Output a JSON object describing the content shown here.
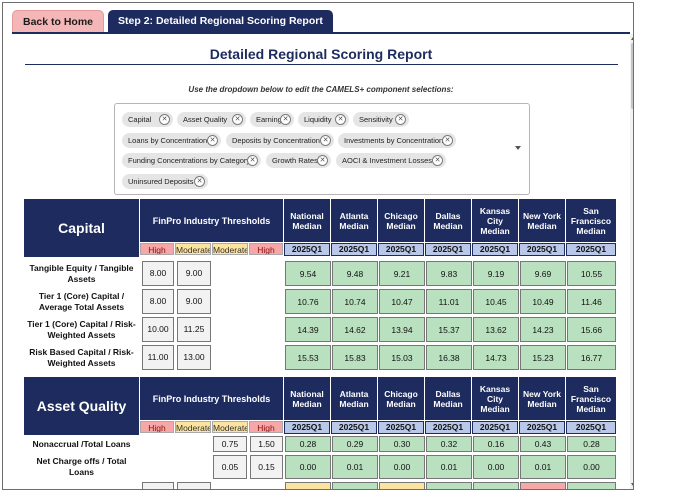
{
  "tabs": {
    "home": "Back to Home",
    "active": "Step 2: Detailed Regional Scoring Report"
  },
  "page": {
    "title": "Detailed Regional Scoring Report",
    "instruction": "Use the dropdown below to edit the CAMELS+ component selections:"
  },
  "selections": [
    "Capital",
    "Asset Quality",
    "Earnings",
    "Liquidity",
    "Sensitivity",
    "Loans by Concentration",
    "Deposits by Concentration",
    "Investments by Concentration",
    "Funding Concentrations by Category",
    "Growth Rates",
    "AOCI & Investment Losses",
    "Uninsured Deposits"
  ],
  "table_common": {
    "thresholds_title": "FinPro Industry Thresholds",
    "pill_high": "High",
    "pill_moderate": "Moderate",
    "quarter": "2025Q1",
    "medians": [
      "National Median",
      "Atlanta Median",
      "Chicago Median",
      "Dallas Median",
      "Kansas City Median",
      "New York Median",
      "San Francisco Median"
    ]
  },
  "capital": {
    "title": "Capital",
    "rows": [
      {
        "label": "Tangible Equity / Tangible Assets",
        "t1": "8.00",
        "t2": "9.00",
        "values": [
          "9.54",
          "9.48",
          "9.21",
          "9.83",
          "9.19",
          "9.69",
          "10.55"
        ]
      },
      {
        "label": "Tier 1 (Core) Capital / Average Total Assets",
        "t1": "8.00",
        "t2": "9.00",
        "values": [
          "10.76",
          "10.74",
          "10.47",
          "11.01",
          "10.45",
          "10.49",
          "11.46"
        ]
      },
      {
        "label": "Tier 1 (Core) Capital / Risk-Weighted Assets",
        "t1": "10.00",
        "t2": "11.25",
        "values": [
          "14.39",
          "14.62",
          "13.94",
          "15.37",
          "13.62",
          "14.23",
          "15.66"
        ]
      },
      {
        "label": "Risk Based Capital / Risk-Weighted Assets",
        "t1": "11.00",
        "t2": "13.00",
        "values": [
          "15.53",
          "15.83",
          "15.03",
          "16.38",
          "14.73",
          "15.23",
          "16.77"
        ]
      }
    ]
  },
  "asset_quality": {
    "title": "Asset Quality",
    "rows": [
      {
        "label": "Nonaccrual /Total Loans",
        "t1": "0.75",
        "t2": "1.50",
        "values": [
          "0.28",
          "0.29",
          "0.30",
          "0.32",
          "0.16",
          "0.43",
          "0.28"
        ]
      },
      {
        "label": "Net Charge offs / Total Loans",
        "t1": "0.05",
        "t2": "0.15",
        "values": [
          "0.00",
          "0.01",
          "0.00",
          "0.01",
          "0.00",
          "0.01",
          "0.00"
        ]
      }
    ]
  }
}
